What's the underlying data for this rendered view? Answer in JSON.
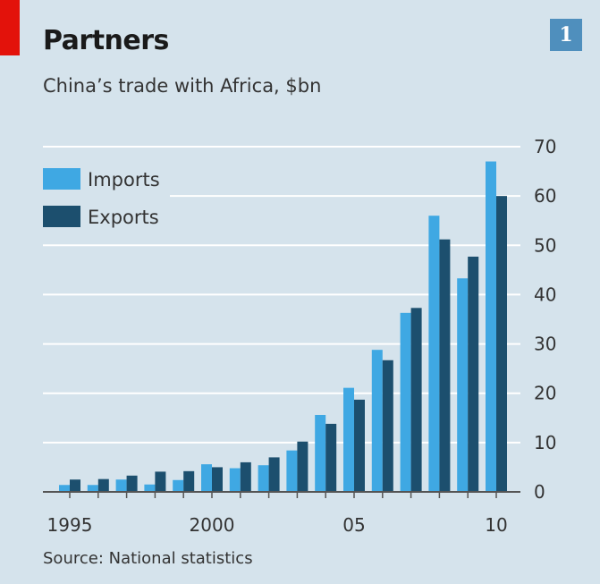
{
  "header": {
    "title": "Partners",
    "subtitle": "China’s trade with Africa, $bn",
    "chart_number": "1"
  },
  "footer": {
    "source": "Source: National statistics"
  },
  "colors": {
    "imports": "#3fa8e3",
    "exports": "#1c4f6e",
    "background": "#d5e3ec",
    "gridline": "#ffffff",
    "accent": "#e3120b"
  },
  "chart_data": {
    "type": "bar",
    "categories": [
      "1995",
      "1996",
      "1997",
      "1998",
      "1999",
      "2000",
      "2001",
      "2002",
      "2003",
      "2004",
      "2005",
      "2006",
      "2007",
      "2008",
      "2009",
      "2010"
    ],
    "series": [
      {
        "name": "Imports",
        "values": [
          1.4,
          1.4,
          2.5,
          1.5,
          2.4,
          5.6,
          4.8,
          5.4,
          8.4,
          15.6,
          21.1,
          28.8,
          36.3,
          56.0,
          43.3,
          67.0
        ]
      },
      {
        "name": "Exports",
        "values": [
          2.5,
          2.6,
          3.3,
          4.1,
          4.2,
          5.0,
          6.0,
          7.0,
          10.2,
          13.8,
          18.7,
          26.7,
          37.3,
          51.2,
          47.7,
          60.0
        ]
      }
    ],
    "ylim": [
      0,
      70
    ],
    "yticks": [
      "0",
      "10",
      "20",
      "30",
      "40",
      "50",
      "60",
      "70"
    ],
    "xtick_labels": [
      {
        "category": "1995",
        "label": "1995"
      },
      {
        "category": "2000",
        "label": "2000"
      },
      {
        "category": "2005",
        "label": "05"
      },
      {
        "category": "2010",
        "label": "10"
      }
    ],
    "grid": true,
    "legend": "top-left",
    "y_axis_side": "right"
  }
}
